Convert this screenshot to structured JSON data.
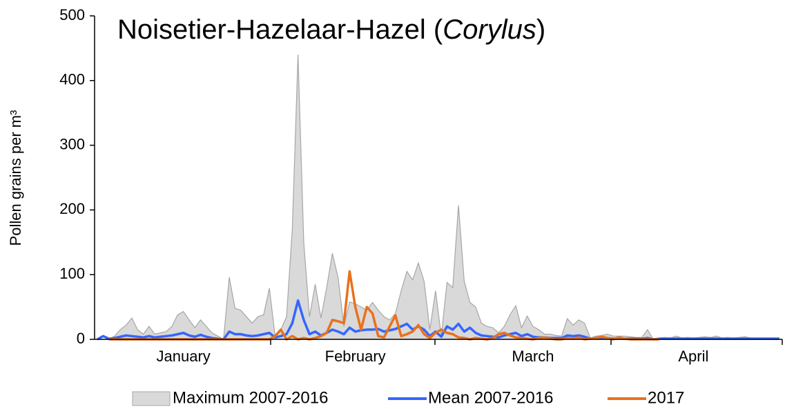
{
  "chart_data": {
    "type": "line",
    "title": [
      "Noisetier-Hazelaar-Hazel (",
      "Corylus",
      ")"
    ],
    "y_label": "Pollen grains per m³",
    "categories": [
      null,
      null,
      null,
      null,
      null,
      null,
      null,
      null,
      null,
      null,
      null,
      null,
      null,
      null,
      null,
      "January",
      null,
      null,
      null,
      null,
      null,
      null,
      null,
      null,
      null,
      null,
      null,
      null,
      null,
      null,
      null,
      null,
      null,
      null,
      null,
      null,
      null,
      null,
      null,
      null,
      null,
      null,
      null,
      null,
      null,
      "February",
      null,
      null,
      null,
      null,
      null,
      null,
      null,
      null,
      null,
      null,
      null,
      null,
      null,
      null,
      null,
      null,
      null,
      null,
      null,
      null,
      null,
      null,
      null,
      null,
      null,
      null,
      null,
      null,
      null,
      null,
      "March",
      null,
      null,
      null,
      null,
      null,
      null,
      null,
      null,
      null,
      null,
      null,
      null,
      null,
      null,
      null,
      null,
      null,
      null,
      null,
      null,
      null,
      null,
      null,
      null,
      null,
      null,
      null,
      "April",
      null,
      null,
      null,
      null,
      null,
      null,
      null,
      null,
      null,
      null,
      null,
      null,
      null,
      null,
      null
    ],
    "series": [
      {
        "name": "Maximum 2007-2016",
        "type": "area",
        "color": "#d9d9d9",
        "edge_color": "#a6a6a6",
        "values": [
          0,
          0,
          0,
          5,
          15,
          22,
          33,
          15,
          8,
          20,
          8,
          10,
          12,
          20,
          38,
          43,
          30,
          18,
          30,
          20,
          10,
          5,
          0,
          96,
          48,
          45,
          35,
          25,
          35,
          38,
          79,
          5,
          15,
          35,
          170,
          440,
          150,
          35,
          85,
          33,
          80,
          133,
          95,
          20,
          58,
          55,
          50,
          45,
          57,
          45,
          35,
          30,
          40,
          75,
          105,
          92,
          118,
          90,
          15,
          75,
          5,
          88,
          80,
          207,
          90,
          57,
          50,
          25,
          20,
          18,
          10,
          20,
          38,
          52,
          18,
          36,
          20,
          15,
          8,
          8,
          6,
          5,
          32,
          22,
          30,
          25,
          2,
          5,
          6,
          8,
          5,
          5,
          5,
          4,
          3,
          3,
          15,
          0,
          2,
          3,
          2,
          5,
          2,
          3,
          2,
          3,
          4,
          3,
          5,
          2,
          3,
          2,
          3,
          4,
          2,
          1,
          2,
          1,
          0,
          0
        ]
      },
      {
        "name": "Mean 2007-2016",
        "type": "line",
        "color": "#3366ff",
        "values": [
          0,
          5,
          1,
          2,
          4,
          6,
          5,
          4,
          3,
          5,
          3,
          4,
          5,
          6,
          8,
          10,
          6,
          4,
          7,
          4,
          2,
          1,
          0,
          12,
          8,
          8,
          6,
          5,
          6,
          8,
          10,
          3,
          5,
          8,
          25,
          60,
          30,
          8,
          12,
          6,
          10,
          15,
          12,
          8,
          18,
          12,
          14,
          15,
          15,
          16,
          12,
          14,
          16,
          20,
          24,
          15,
          20,
          15,
          5,
          12,
          4,
          20,
          15,
          24,
          12,
          18,
          10,
          6,
          5,
          4,
          3,
          6,
          8,
          10,
          5,
          8,
          4,
          3,
          3,
          2,
          2,
          2,
          6,
          5,
          6,
          4,
          1,
          2,
          2,
          2,
          1,
          1,
          1,
          1,
          1,
          1,
          2,
          0,
          1,
          1,
          1,
          1,
          1,
          1,
          1,
          1,
          1,
          1,
          1,
          1,
          1,
          1,
          1,
          1,
          1,
          1,
          1,
          1,
          1,
          1
        ]
      },
      {
        "name": "2017",
        "type": "line",
        "color": "#e9711c",
        "values": [
          null,
          null,
          0,
          0,
          0,
          0,
          0,
          0,
          0,
          0,
          0,
          0,
          0,
          0,
          0,
          0,
          0,
          0,
          0,
          0,
          0,
          0,
          0,
          0,
          0,
          0,
          0,
          0,
          0,
          0,
          0,
          5,
          15,
          0,
          5,
          0,
          2,
          0,
          2,
          5,
          10,
          30,
          28,
          25,
          105,
          50,
          15,
          50,
          40,
          5,
          3,
          20,
          37,
          5,
          8,
          12,
          22,
          8,
          2,
          10,
          15,
          10,
          8,
          3,
          2,
          0,
          2,
          1,
          0,
          2,
          8,
          10,
          6,
          3,
          2,
          1,
          0,
          2,
          3,
          1,
          0,
          0,
          2,
          1,
          3,
          0,
          1,
          2,
          4,
          2,
          0,
          3,
          1,
          0,
          0,
          0,
          0,
          0,
          0,
          null,
          null,
          null,
          null,
          null,
          null,
          null,
          null,
          null,
          null,
          null,
          null,
          null,
          null,
          null,
          null,
          null,
          null,
          null,
          null,
          null
        ]
      }
    ],
    "ylim": [
      0,
      500
    ],
    "yticks": [
      0,
      100,
      200,
      300,
      400,
      500
    ],
    "grid": false,
    "legend": "bottom"
  }
}
